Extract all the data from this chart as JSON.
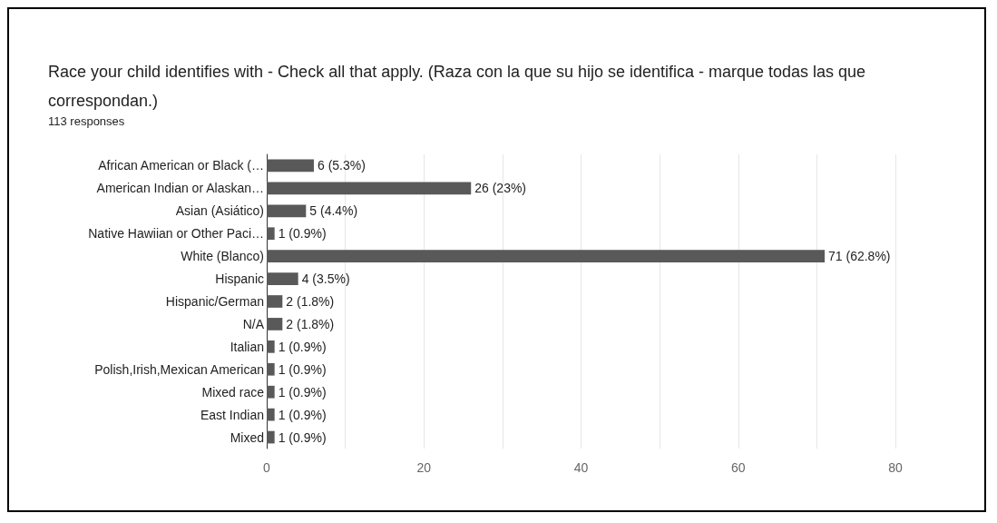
{
  "chart_data": {
    "type": "bar",
    "orientation": "horizontal",
    "title": "Race your child identifies with - Check all that apply. (Raza con la que su hijo se identifica - marque todas las que correspondan.)",
    "subtitle": "113 responses",
    "categories": [
      "African American or Black (…",
      "American Indian or Alaskan…",
      "Asian (Asiático)",
      "Native Hawiian or Other Paci…",
      "White (Blanco)",
      "Hispanic",
      "Hispanic/German",
      "N/A",
      "Italian",
      "Polish,Irish,Mexican American",
      "Mixed race",
      "East Indian",
      "Mixed"
    ],
    "values": [
      6,
      26,
      5,
      1,
      71,
      4,
      2,
      2,
      1,
      1,
      1,
      1,
      1
    ],
    "value_labels": [
      "6 (5.3%)",
      "26 (23%)",
      "5 (4.4%)",
      "1 (0.9%)",
      "71 (62.8%)",
      "4 (3.5%)",
      "2 (1.8%)",
      "2 (1.8%)",
      "1 (0.9%)",
      "1 (0.9%)",
      "1 (0.9%)",
      "1 (0.9%)",
      "1 (0.9%)"
    ],
    "color": "#595959",
    "xlim": [
      0,
      80
    ],
    "xticks": [
      0,
      {
        "value": 10,
        "label": null
      },
      20,
      {
        "value": 30,
        "label": null
      },
      40,
      {
        "value": 50,
        "label": null
      },
      60,
      {
        "value": 70,
        "label": null
      },
      80
    ],
    "grid": "x"
  }
}
